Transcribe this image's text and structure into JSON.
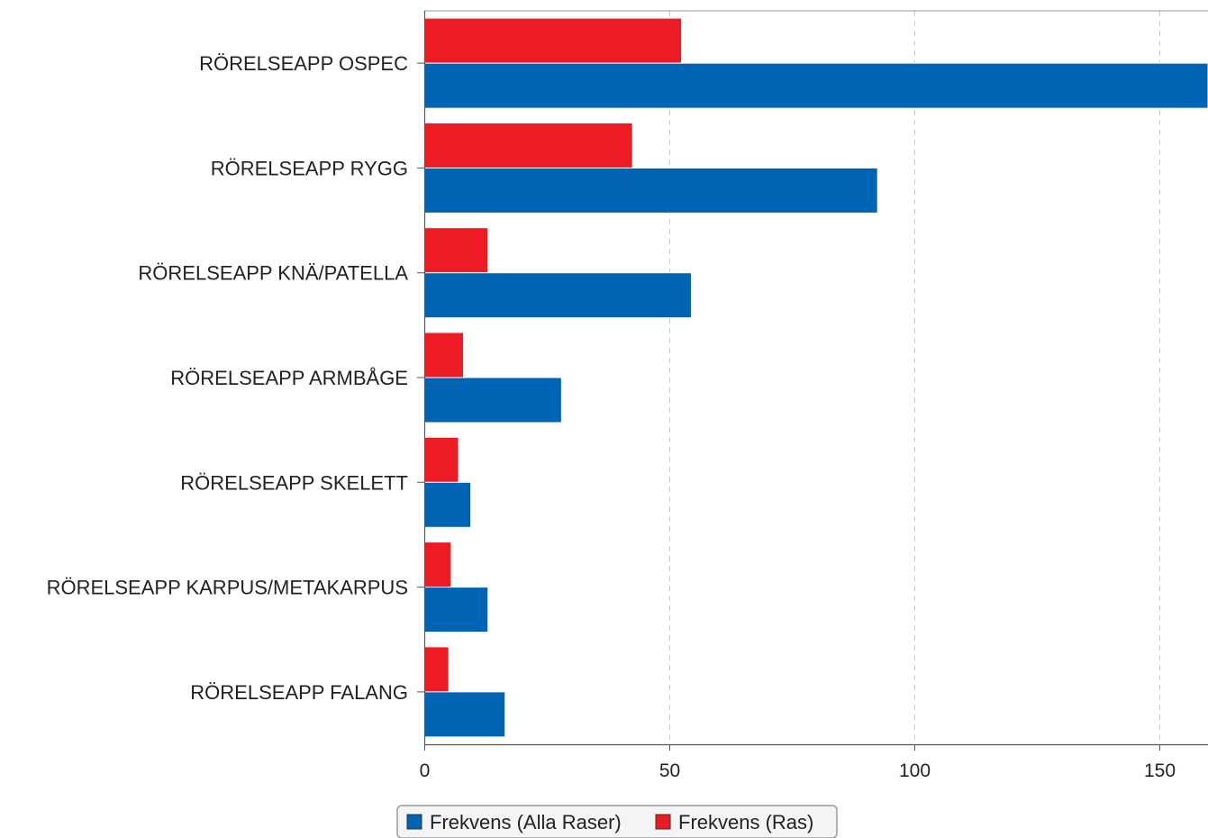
{
  "chart_data": {
    "type": "bar",
    "orientation": "horizontal",
    "categories": [
      "RÖRELSEAPP OSPEC",
      "RÖRELSEAPP RYGG",
      "RÖRELSEAPP KNÄ/PATELLA",
      "RÖRELSEAPP ARMBÅGE",
      "RÖRELSEAPP SKELETT",
      "RÖRELSEAPP KARPUS/METAKARPUS",
      "RÖRELSEAPP FALANG"
    ],
    "series": [
      {
        "name": "Frekvens (Ras)",
        "color": "#ed1c24",
        "values": [
          52.5,
          42.5,
          13,
          8,
          7,
          5.5,
          5
        ]
      },
      {
        "name": "Frekvens (Alla Raser)",
        "color": "#0064b4",
        "values": [
          165,
          92.5,
          54.5,
          28,
          9.5,
          13,
          16.5
        ]
      }
    ],
    "xlim": [
      0,
      160
    ],
    "xticks": [
      0,
      50,
      100,
      150
    ],
    "grid": {
      "vertical": true,
      "style": "dashed"
    },
    "legend": {
      "placement": "bottom-center",
      "items": [
        {
          "label": "Frekvens (Alla Raser)",
          "color": "#0064b4"
        },
        {
          "label": "Frekvens (Ras)",
          "color": "#ed1c24"
        }
      ]
    },
    "title": "",
    "xlabel": "",
    "ylabel": ""
  }
}
